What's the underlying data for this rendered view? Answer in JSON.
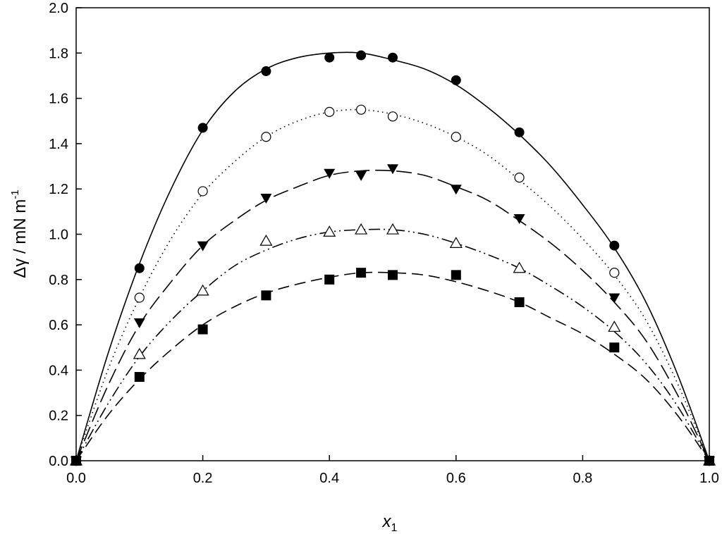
{
  "chart_data": {
    "type": "scatter",
    "title": "",
    "xlabel": "x",
    "xlabel_subscript": "1",
    "ylabel": "Δγ / mN m",
    "ylabel_superscript": "-1",
    "xlim": [
      0,
      1
    ],
    "ylim": [
      0,
      2
    ],
    "x_ticks": [
      "0.0",
      "0.2",
      "0.4",
      "0.6",
      "0.8",
      "1.0"
    ],
    "y_ticks": [
      "0.0",
      "0.2",
      "0.4",
      "0.6",
      "0.8",
      "1.0",
      "1.2",
      "1.4",
      "1.6",
      "1.8",
      "2.0"
    ],
    "grid": false,
    "legend": "none",
    "series": [
      {
        "marker": "filled-circle",
        "line": "solid",
        "points": [
          [
            0,
            0
          ],
          [
            0.1,
            0.85
          ],
          [
            0.2,
            1.47
          ],
          [
            0.3,
            1.72
          ],
          [
            0.4,
            1.78
          ],
          [
            0.45,
            1.79
          ],
          [
            0.5,
            1.78
          ],
          [
            0.6,
            1.68
          ],
          [
            0.7,
            1.45
          ],
          [
            0.85,
            0.95
          ],
          [
            1.0,
            0
          ]
        ],
        "curve": [
          [
            0,
            0
          ],
          [
            0.05,
            0.47
          ],
          [
            0.1,
            0.87
          ],
          [
            0.15,
            1.2
          ],
          [
            0.2,
            1.46
          ],
          [
            0.25,
            1.63
          ],
          [
            0.3,
            1.73
          ],
          [
            0.35,
            1.78
          ],
          [
            0.4,
            1.8
          ],
          [
            0.45,
            1.8
          ],
          [
            0.5,
            1.77
          ],
          [
            0.55,
            1.73
          ],
          [
            0.6,
            1.66
          ],
          [
            0.65,
            1.56
          ],
          [
            0.7,
            1.44
          ],
          [
            0.75,
            1.3
          ],
          [
            0.8,
            1.13
          ],
          [
            0.85,
            0.94
          ],
          [
            0.9,
            0.7
          ],
          [
            0.95,
            0.38
          ],
          [
            1.0,
            0
          ]
        ]
      },
      {
        "marker": "open-circle",
        "line": "dotted",
        "points": [
          [
            0,
            0
          ],
          [
            0.1,
            0.72
          ],
          [
            0.2,
            1.19
          ],
          [
            0.3,
            1.43
          ],
          [
            0.4,
            1.54
          ],
          [
            0.45,
            1.55
          ],
          [
            0.5,
            1.52
          ],
          [
            0.6,
            1.43
          ],
          [
            0.7,
            1.25
          ],
          [
            0.85,
            0.83
          ],
          [
            1.0,
            0
          ]
        ],
        "curve": [
          [
            0,
            0
          ],
          [
            0.05,
            0.4
          ],
          [
            0.1,
            0.72
          ],
          [
            0.15,
            0.98
          ],
          [
            0.2,
            1.18
          ],
          [
            0.25,
            1.32
          ],
          [
            0.3,
            1.43
          ],
          [
            0.35,
            1.5
          ],
          [
            0.4,
            1.54
          ],
          [
            0.45,
            1.55
          ],
          [
            0.5,
            1.53
          ],
          [
            0.55,
            1.49
          ],
          [
            0.6,
            1.43
          ],
          [
            0.65,
            1.35
          ],
          [
            0.7,
            1.24
          ],
          [
            0.75,
            1.12
          ],
          [
            0.8,
            0.98
          ],
          [
            0.85,
            0.82
          ],
          [
            0.9,
            0.62
          ],
          [
            0.95,
            0.34
          ],
          [
            1.0,
            0
          ]
        ]
      },
      {
        "marker": "filled-triangle-down",
        "line": "long-dash",
        "points": [
          [
            0,
            0
          ],
          [
            0.1,
            0.61
          ],
          [
            0.2,
            0.95
          ],
          [
            0.3,
            1.16
          ],
          [
            0.4,
            1.27
          ],
          [
            0.45,
            1.26
          ],
          [
            0.5,
            1.29
          ],
          [
            0.6,
            1.2
          ],
          [
            0.7,
            1.07
          ],
          [
            0.85,
            0.72
          ],
          [
            1.0,
            0
          ]
        ],
        "curve": [
          [
            0,
            0
          ],
          [
            0.05,
            0.33
          ],
          [
            0.1,
            0.6
          ],
          [
            0.15,
            0.79
          ],
          [
            0.2,
            0.95
          ],
          [
            0.25,
            1.06
          ],
          [
            0.3,
            1.15
          ],
          [
            0.35,
            1.21
          ],
          [
            0.4,
            1.26
          ],
          [
            0.45,
            1.28
          ],
          [
            0.5,
            1.28
          ],
          [
            0.55,
            1.26
          ],
          [
            0.6,
            1.21
          ],
          [
            0.65,
            1.15
          ],
          [
            0.7,
            1.06
          ],
          [
            0.75,
            0.96
          ],
          [
            0.8,
            0.84
          ],
          [
            0.85,
            0.7
          ],
          [
            0.9,
            0.53
          ],
          [
            0.95,
            0.29
          ],
          [
            1.0,
            0
          ]
        ]
      },
      {
        "marker": "open-triangle-up",
        "line": "dash-dot-dot",
        "points": [
          [
            0,
            0
          ],
          [
            0.1,
            0.47
          ],
          [
            0.2,
            0.75
          ],
          [
            0.3,
            0.97
          ],
          [
            0.4,
            1.01
          ],
          [
            0.45,
            1.02
          ],
          [
            0.5,
            1.02
          ],
          [
            0.6,
            0.96
          ],
          [
            0.7,
            0.85
          ],
          [
            0.85,
            0.59
          ],
          [
            1.0,
            0
          ]
        ],
        "curve": [
          [
            0,
            0
          ],
          [
            0.05,
            0.25
          ],
          [
            0.1,
            0.46
          ],
          [
            0.15,
            0.62
          ],
          [
            0.2,
            0.75
          ],
          [
            0.25,
            0.86
          ],
          [
            0.3,
            0.93
          ],
          [
            0.35,
            0.98
          ],
          [
            0.4,
            1.01
          ],
          [
            0.45,
            1.02
          ],
          [
            0.5,
            1.02
          ],
          [
            0.55,
            1.0
          ],
          [
            0.6,
            0.96
          ],
          [
            0.65,
            0.91
          ],
          [
            0.7,
            0.85
          ],
          [
            0.75,
            0.77
          ],
          [
            0.8,
            0.68
          ],
          [
            0.85,
            0.57
          ],
          [
            0.9,
            0.43
          ],
          [
            0.95,
            0.24
          ],
          [
            1.0,
            0
          ]
        ]
      },
      {
        "marker": "filled-square",
        "line": "dashed",
        "points": [
          [
            0,
            0
          ],
          [
            0.1,
            0.37
          ],
          [
            0.2,
            0.58
          ],
          [
            0.3,
            0.73
          ],
          [
            0.4,
            0.8
          ],
          [
            0.45,
            0.83
          ],
          [
            0.5,
            0.82
          ],
          [
            0.6,
            0.82
          ],
          [
            0.7,
            0.7
          ],
          [
            0.85,
            0.5
          ],
          [
            1.0,
            0
          ]
        ],
        "curve": [
          [
            0,
            0
          ],
          [
            0.05,
            0.2
          ],
          [
            0.1,
            0.36
          ],
          [
            0.15,
            0.49
          ],
          [
            0.2,
            0.6
          ],
          [
            0.25,
            0.68
          ],
          [
            0.3,
            0.74
          ],
          [
            0.35,
            0.78
          ],
          [
            0.4,
            0.81
          ],
          [
            0.45,
            0.83
          ],
          [
            0.5,
            0.83
          ],
          [
            0.55,
            0.82
          ],
          [
            0.6,
            0.79
          ],
          [
            0.65,
            0.75
          ],
          [
            0.7,
            0.7
          ],
          [
            0.75,
            0.63
          ],
          [
            0.8,
            0.56
          ],
          [
            0.85,
            0.47
          ],
          [
            0.9,
            0.36
          ],
          [
            0.95,
            0.2
          ],
          [
            1.0,
            0
          ]
        ]
      }
    ]
  }
}
